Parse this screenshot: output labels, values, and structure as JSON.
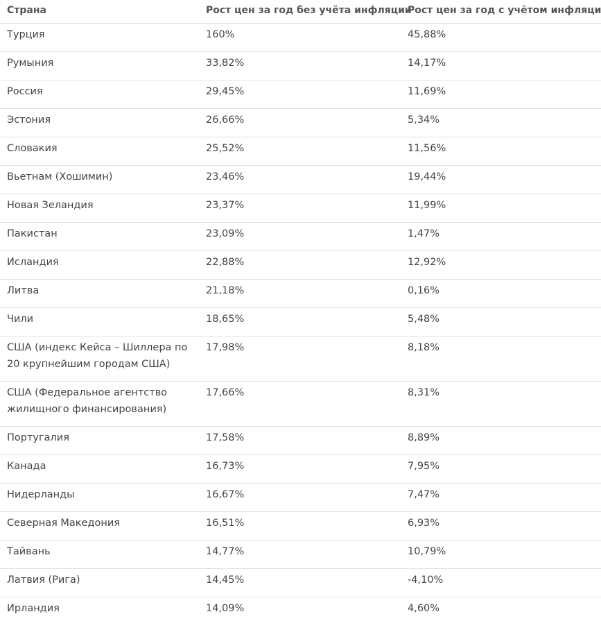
{
  "table": {
    "headers": [
      "Страна",
      "Рост цен за год без учёта инфляции",
      "Рост цен за год с учётом инфляции"
    ],
    "rows": [
      [
        "Турция",
        "160%",
        "45,88%"
      ],
      [
        "Румыния",
        "33,82%",
        "14,17%"
      ],
      [
        "Россия",
        "29,45%",
        "11,69%"
      ],
      [
        "Эстония",
        "26,66%",
        "5,34%"
      ],
      [
        "Словакия",
        "25,52%",
        "11,56%"
      ],
      [
        "Вьетнам (Хошимин)",
        "23,46%",
        "19,44%"
      ],
      [
        "Новая Зеландия",
        "23,37%",
        "11,99%"
      ],
      [
        "Пакистан",
        "23,09%",
        "1,47%"
      ],
      [
        "Исландия",
        "22,88%",
        "12,92%"
      ],
      [
        "Литва",
        "21,18%",
        "0,16%"
      ],
      [
        "Чили",
        "18,65%",
        "5,48%"
      ],
      [
        "США (индекс Кейса – Шиллера по 20 крупнейшим городам США)",
        "17,98%",
        "8,18%"
      ],
      [
        "США (Федеральное агентство жилищного финансирования)",
        "17,66%",
        "8,31%"
      ],
      [
        "Португалия",
        "17,58%",
        "8,89%"
      ],
      [
        "Канада",
        "16,73%",
        "7,95%"
      ],
      [
        "Нидерланды",
        "16,67%",
        "7,47%"
      ],
      [
        "Северная Македония",
        "16,51%",
        "6,93%"
      ],
      [
        "Тайвань",
        "14,77%",
        "10,79%"
      ],
      [
        "Латвия (Рига)",
        "14,45%",
        "-4,10%"
      ],
      [
        "Ирландия",
        "14,09%",
        "4,60%"
      ]
    ]
  }
}
